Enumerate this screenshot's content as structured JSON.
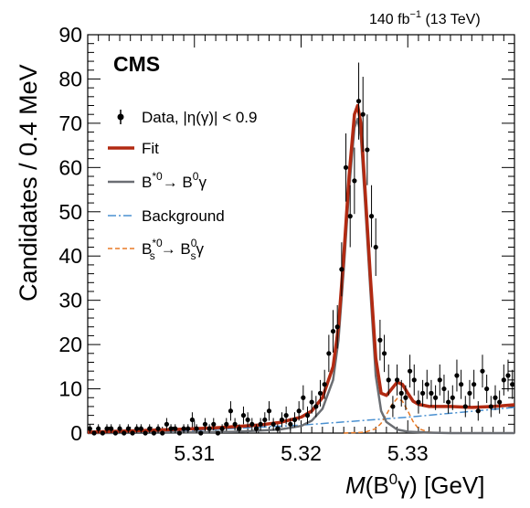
{
  "header": {
    "lumi": "140 fb",
    "lumi_sup": "−1",
    "energy": " (13 TeV)"
  },
  "experiment_label": "CMS",
  "chart_data": {
    "type": "scatter",
    "xlabel": "M(B⁰γ) [GeV]",
    "xlabel_parts": {
      "m": "M",
      "open": "(B",
      "sup": "0",
      "gamma": "γ) [GeV]"
    },
    "ylabel": "Candidates / 0.4 MeV",
    "xlim": [
      5.3,
      5.34
    ],
    "ylim": [
      0,
      90
    ],
    "xticks": [
      5.31,
      5.32,
      5.33
    ],
    "xtick_labels": [
      "5.31",
      "5.32",
      "5.33"
    ],
    "yticks": [
      0,
      10,
      20,
      30,
      40,
      50,
      60,
      70,
      80,
      90
    ],
    "ytick_labels": [
      "0",
      "10",
      "20",
      "30",
      "40",
      "50",
      "60",
      "70",
      "80",
      "90"
    ],
    "legend": {
      "placement": "top-left",
      "entries": [
        {
          "key": "data",
          "label": "Data, |η(γ)| < 0.9"
        },
        {
          "key": "fit",
          "label": "Fit"
        },
        {
          "key": "signal",
          "label": "B*⁰→ B⁰γ"
        },
        {
          "key": "background",
          "label": "Background"
        },
        {
          "key": "bs",
          "label": "Bₛ*⁰→ Bₛ⁰γ"
        }
      ]
    },
    "colors": {
      "fit": "#b22a12",
      "signal": "#6b6e73",
      "background": "#4a90d0",
      "bs": "#e87a26",
      "data": "#000000"
    },
    "series": [
      {
        "name": "Data, |η(γ)| < 0.9",
        "x": [
          5.3002,
          5.3006,
          5.301,
          5.3014,
          5.3018,
          5.3022,
          5.3026,
          5.303,
          5.3034,
          5.3038,
          5.3042,
          5.3046,
          5.305,
          5.3054,
          5.3058,
          5.3062,
          5.3066,
          5.307,
          5.3074,
          5.3078,
          5.3082,
          5.3086,
          5.309,
          5.3094,
          5.3098,
          5.3102,
          5.3106,
          5.311,
          5.3114,
          5.3118,
          5.3122,
          5.3126,
          5.313,
          5.3134,
          5.3138,
          5.3142,
          5.3146,
          5.315,
          5.3154,
          5.3158,
          5.3162,
          5.3166,
          5.317,
          5.3174,
          5.3178,
          5.3182,
          5.3186,
          5.319,
          5.3194,
          5.3198,
          5.3202,
          5.3206,
          5.321,
          5.3214,
          5.3218,
          5.3222,
          5.3226,
          5.323,
          5.3234,
          5.3238,
          5.3242,
          5.3246,
          5.325,
          5.3254,
          5.3258,
          5.3262,
          5.3266,
          5.327,
          5.3274,
          5.3278,
          5.3282,
          5.3286,
          5.329,
          5.3294,
          5.3298,
          5.3302,
          5.3306,
          5.331,
          5.3314,
          5.3318,
          5.3322,
          5.3326,
          5.333,
          5.3334,
          5.3338,
          5.3342,
          5.3346,
          5.335,
          5.3354,
          5.3358,
          5.3362,
          5.3366,
          5.337,
          5.3374,
          5.3378,
          5.3382,
          5.3386,
          5.339,
          5.3394,
          5.3398
        ],
        "y": [
          1,
          0,
          1,
          0,
          1,
          1,
          0,
          1,
          0,
          1,
          0,
          1,
          1,
          0,
          1,
          0,
          1,
          0,
          2,
          1,
          1,
          0,
          1,
          1,
          3,
          1,
          0,
          2,
          1,
          2,
          0,
          1,
          2,
          5,
          2,
          1,
          4,
          3,
          2,
          1,
          2,
          3,
          5,
          2,
          1,
          3,
          4,
          2,
          3,
          5,
          8,
          4,
          7,
          6,
          9,
          11,
          18,
          23,
          24,
          37,
          60,
          49,
          57,
          75,
          72,
          64,
          49,
          42,
          21,
          18,
          12,
          6,
          12,
          9,
          8,
          14,
          12,
          7,
          9,
          11,
          9,
          8,
          12,
          10,
          7,
          8,
          13,
          11,
          6,
          9,
          11,
          5,
          14,
          10,
          6,
          8,
          7,
          12,
          13,
          11
        ],
        "yerr": [
          1,
          0,
          1,
          0,
          1,
          1,
          0,
          1,
          0,
          1,
          0,
          1,
          1,
          0,
          1,
          0,
          1,
          0,
          1.4,
          1,
          1,
          0,
          1,
          1,
          1.7,
          1,
          0,
          1.4,
          1,
          1.4,
          0,
          1,
          1.4,
          2.2,
          1.4,
          1,
          2,
          1.7,
          1.4,
          1,
          1.4,
          1.7,
          2.2,
          1.4,
          1,
          1.7,
          2,
          1.4,
          1.7,
          2.2,
          2.8,
          2,
          2.6,
          2.4,
          3,
          3.3,
          4.2,
          4.8,
          4.9,
          6.1,
          7.7,
          7,
          7.5,
          8.7,
          8.5,
          8,
          7,
          6.5,
          4.6,
          4.2,
          3.5,
          2.4,
          3.5,
          3,
          2.8,
          3.7,
          3.5,
          2.6,
          3,
          3.3,
          3,
          2.8,
          3.5,
          3.2,
          2.6,
          2.8,
          3.6,
          3.3,
          2.4,
          3,
          3.3,
          2.2,
          3.7,
          3.2,
          2.4,
          2.8,
          2.6,
          3.5,
          3.6,
          3.3
        ]
      },
      {
        "name": "Fit",
        "x": [
          5.3,
          5.304,
          5.308,
          5.312,
          5.316,
          5.318,
          5.32,
          5.321,
          5.322,
          5.323,
          5.3235,
          5.324,
          5.3245,
          5.325,
          5.3253,
          5.3256,
          5.326,
          5.3265,
          5.327,
          5.3275,
          5.328,
          5.3285,
          5.329,
          5.3295,
          5.33,
          5.3305,
          5.331,
          5.332,
          5.334,
          5.336,
          5.338,
          5.34
        ],
        "y": [
          0.2,
          0.5,
          0.8,
          1.2,
          1.8,
          2.4,
          3.6,
          5.0,
          8.0,
          15.0,
          24.0,
          40.0,
          58.0,
          72.0,
          74.0,
          70.0,
          55.0,
          35.0,
          17.0,
          9.0,
          8.5,
          10.0,
          11.5,
          11.0,
          9.0,
          7.2,
          6.5,
          6.0,
          6.0,
          5.8,
          6.0,
          6.4
        ]
      },
      {
        "name": "B*⁰→ B⁰γ",
        "x": [
          5.3,
          5.308,
          5.314,
          5.318,
          5.32,
          5.321,
          5.322,
          5.323,
          5.3235,
          5.324,
          5.3245,
          5.325,
          5.3253,
          5.3256,
          5.326,
          5.3265,
          5.327,
          5.3275,
          5.328,
          5.329,
          5.33,
          5.332,
          5.334,
          5.34
        ],
        "y": [
          0,
          0.1,
          0.3,
          0.8,
          1.6,
          2.8,
          5.5,
          12.0,
          21.0,
          37.0,
          55.0,
          69.0,
          71.0,
          67.0,
          52.0,
          32.0,
          13.0,
          5.0,
          2.5,
          0.8,
          0.3,
          0.1,
          0,
          0
        ]
      },
      {
        "name": "Background",
        "x": [
          5.3,
          5.31,
          5.32,
          5.33,
          5.34
        ],
        "y": [
          0,
          0.6,
          1.8,
          3.6,
          5.8
        ]
      },
      {
        "name": "Bₛ*⁰→ Bₛ⁰γ",
        "x": [
          5.324,
          5.326,
          5.327,
          5.3275,
          5.328,
          5.3285,
          5.329,
          5.3295,
          5.33,
          5.3305,
          5.331,
          5.332,
          5.334
        ],
        "y": [
          0,
          0.2,
          1.0,
          2.2,
          4.2,
          6.4,
          7.8,
          7.2,
          5.0,
          2.6,
          1.0,
          0.2,
          0
        ]
      }
    ]
  }
}
